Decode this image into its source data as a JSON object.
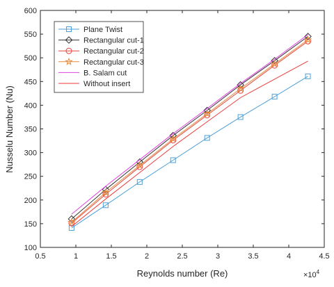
{
  "chart_data": {
    "type": "line",
    "xlabel": "Reynolds number (Re)",
    "ylabel": "Nusselu Number (Nu)",
    "x_multiplier_label": "×10",
    "x_multiplier_exponent": "4",
    "xlim": [
      0.5,
      4.5
    ],
    "ylim": [
      100,
      600
    ],
    "x_ticks": [
      0.5,
      1,
      1.5,
      2,
      2.5,
      3,
      3.5,
      4,
      4.5
    ],
    "x_tick_labels": [
      "0.5",
      "1",
      "1.5",
      "2",
      "2.5",
      "3",
      "3.5",
      "4",
      "4.5"
    ],
    "y_ticks": [
      100,
      150,
      200,
      250,
      300,
      350,
      400,
      450,
      500,
      550,
      600
    ],
    "y_tick_labels": [
      "100",
      "150",
      "200",
      "250",
      "300",
      "350",
      "400",
      "450",
      "500",
      "550",
      "600"
    ],
    "grid": false,
    "legend_position": "top-left",
    "x": [
      0.94,
      1.42,
      1.9,
      2.37,
      2.85,
      3.32,
      3.8,
      4.27
    ],
    "series": [
      {
        "name": "Plane Twist",
        "color": "#4a9fd8",
        "marker": "square",
        "values": [
          141,
          189,
          238,
          284,
          331,
          375,
          418,
          461
        ]
      },
      {
        "name": "Rectangular cut-1",
        "color": "#333333",
        "marker": "diamond",
        "values": [
          160,
          222,
          280,
          336,
          389,
          443,
          494,
          545
        ]
      },
      {
        "name": "Rectangular cut-2",
        "color": "#e8453c",
        "marker": "circle",
        "values": [
          151,
          212,
          270,
          326,
          379,
          431,
          484,
          535
        ]
      },
      {
        "name": "Rectangular cut-3",
        "color": "#e88a3c",
        "marker": "star",
        "values": [
          153,
          216,
          273,
          329,
          382,
          435,
          487,
          538
        ]
      },
      {
        "name": "B. Salam cut",
        "color": "#e040e0",
        "marker": "none",
        "values": [
          170,
          229,
          285,
          340,
          393,
          446,
          497,
          549
        ]
      },
      {
        "name": "Without insert",
        "color": "#ee3a3a",
        "marker": "none",
        "values": [
          144,
          202,
          258,
          313,
          365,
          416,
          455,
          493
        ]
      }
    ]
  }
}
